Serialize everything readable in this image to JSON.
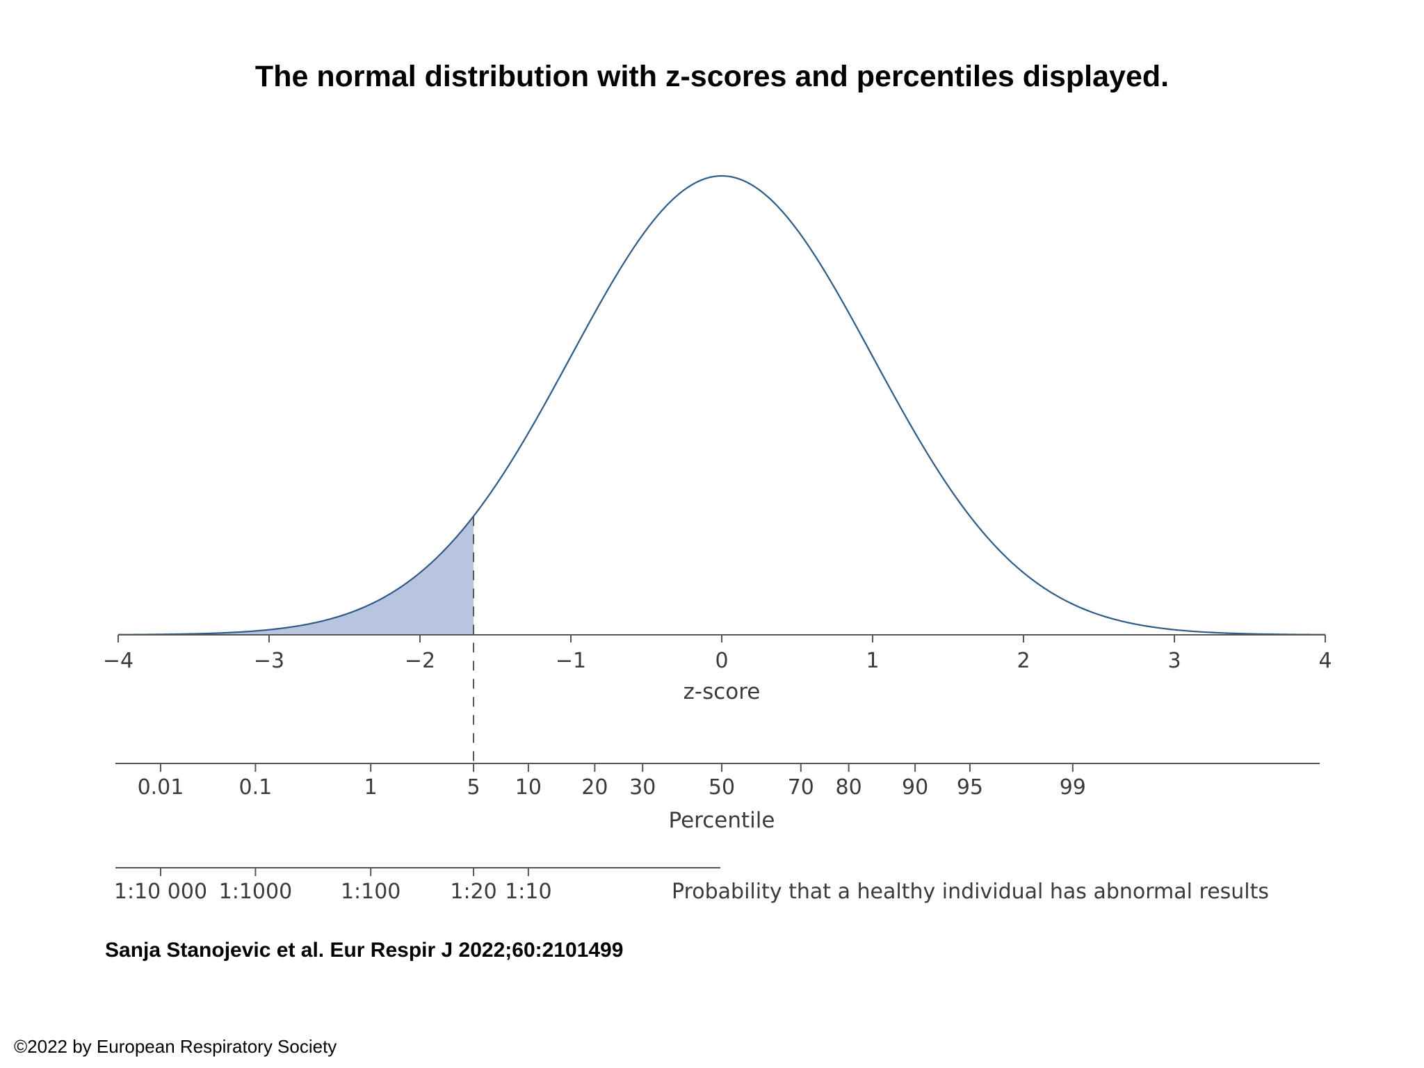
{
  "slide": {
    "title": "The normal distribution with z-scores and percentiles displayed.",
    "citation": "Sanja Stanojevic et al. Eur Respir J 2022;60:2101499",
    "copyright": "©2022 by European Respiratory Society"
  },
  "chart_data": {
    "type": "area",
    "title": "",
    "distribution": "standard normal",
    "mean": 0,
    "sd": 1,
    "xlabel": "z-score",
    "xlim": [
      -4,
      4
    ],
    "z_ticks": [
      {
        "value": -4,
        "label": "−4"
      },
      {
        "value": -3,
        "label": "−3"
      },
      {
        "value": -2,
        "label": "−2"
      },
      {
        "value": -1,
        "label": "−1"
      },
      {
        "value": 0,
        "label": "0"
      },
      {
        "value": 1,
        "label": "1"
      },
      {
        "value": 2,
        "label": "2"
      },
      {
        "value": 3,
        "label": "3"
      },
      {
        "value": 4,
        "label": "4"
      }
    ],
    "shaded_region": {
      "from_z": -4,
      "to_z": -1.645,
      "percentile": 5
    },
    "percentile_axis": {
      "label": "Percentile",
      "ticks": [
        {
          "percentile": 0.01,
          "label": "0.01"
        },
        {
          "percentile": 0.1,
          "label": "0.1"
        },
        {
          "percentile": 1,
          "label": "1"
        },
        {
          "percentile": 5,
          "label": "5"
        },
        {
          "percentile": 10,
          "label": "10"
        },
        {
          "percentile": 20,
          "label": "20"
        },
        {
          "percentile": 30,
          "label": "30"
        },
        {
          "percentile": 50,
          "label": "50"
        },
        {
          "percentile": 70,
          "label": "70"
        },
        {
          "percentile": 80,
          "label": "80"
        },
        {
          "percentile": 90,
          "label": "90"
        },
        {
          "percentile": 95,
          "label": "95"
        },
        {
          "percentile": 99,
          "label": "99"
        }
      ]
    },
    "probability_axis": {
      "label": "Probability that a healthy individual has abnormal results",
      "ticks": [
        {
          "percentile": 0.01,
          "label": "1:10 000"
        },
        {
          "percentile": 0.1,
          "label": "1:1000"
        },
        {
          "percentile": 1,
          "label": "1:100"
        },
        {
          "percentile": 5,
          "label": "1:20"
        },
        {
          "percentile": 10,
          "label": "1:10"
        }
      ]
    },
    "colors": {
      "curve": "#2e5a87",
      "fill": "#b8c4e0",
      "axis": "#555555",
      "text": "#3a3a3a"
    }
  }
}
